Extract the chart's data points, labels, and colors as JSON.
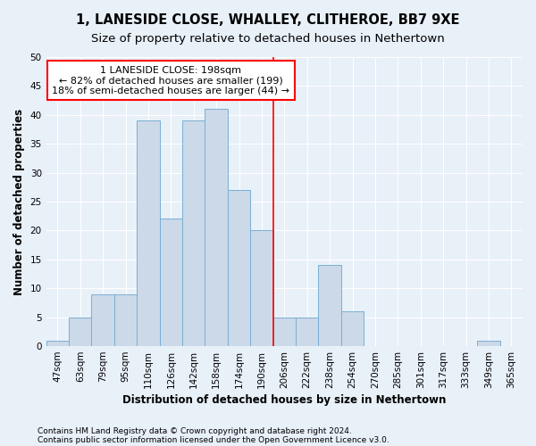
{
  "title1": "1, LANESIDE CLOSE, WHALLEY, CLITHEROE, BB7 9XE",
  "title2": "Size of property relative to detached houses in Nethertown",
  "xlabel": "Distribution of detached houses by size in Nethertown",
  "ylabel": "Number of detached properties",
  "footer1": "Contains HM Land Registry data © Crown copyright and database right 2024.",
  "footer2": "Contains public sector information licensed under the Open Government Licence v3.0.",
  "bar_labels": [
    "47sqm",
    "63sqm",
    "79sqm",
    "95sqm",
    "110sqm",
    "126sqm",
    "142sqm",
    "158sqm",
    "174sqm",
    "190sqm",
    "206sqm",
    "222sqm",
    "238sqm",
    "254sqm",
    "270sqm",
    "285sqm",
    "301sqm",
    "317sqm",
    "333sqm",
    "349sqm",
    "365sqm"
  ],
  "bar_heights": [
    1,
    5,
    9,
    9,
    39,
    22,
    39,
    41,
    27,
    20,
    5,
    5,
    14,
    6,
    0,
    0,
    0,
    0,
    0,
    1,
    0
  ],
  "bar_color": "#ccd9e8",
  "bar_edgecolor": "#7aafd4",
  "vline_x": 9.5,
  "annotation_text": "1 LANESIDE CLOSE: 198sqm\n← 82% of detached houses are smaller (199)\n18% of semi-detached houses are larger (44) →",
  "annotation_box_color": "white",
  "annotation_box_edgecolor": "red",
  "vline_color": "red",
  "ylim": [
    0,
    50
  ],
  "yticks": [
    0,
    5,
    10,
    15,
    20,
    25,
    30,
    35,
    40,
    45,
    50
  ],
  "background_color": "#e8f0f8",
  "grid_color": "white",
  "title_fontsize": 10.5,
  "subtitle_fontsize": 9.5,
  "axis_label_fontsize": 8.5,
  "tick_fontsize": 7.5,
  "footer_fontsize": 6.5
}
